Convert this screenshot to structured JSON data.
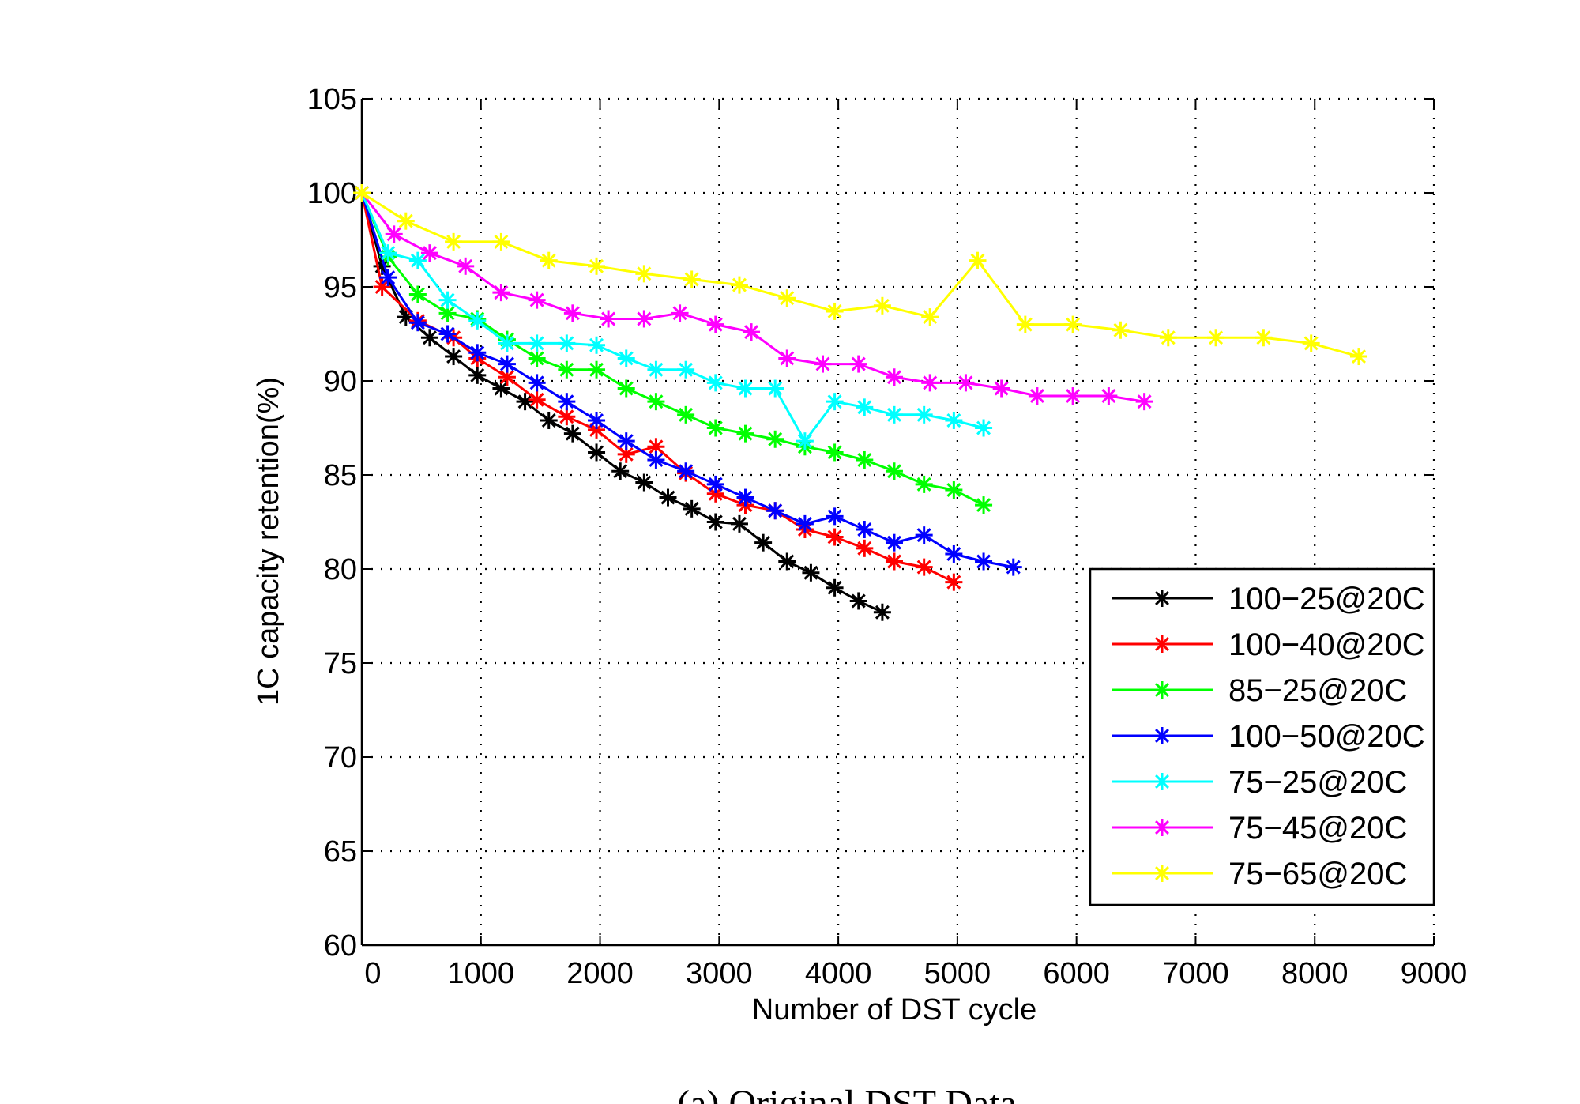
{
  "chart_data": {
    "type": "line",
    "title": "",
    "xlabel": "Number of DST cycle",
    "ylabel": "1C capacity retention(%)",
    "xlim": [
      0,
      9000
    ],
    "ylim": [
      60,
      105
    ],
    "xticks": [
      0,
      1000,
      2000,
      3000,
      4000,
      5000,
      6000,
      7000,
      8000,
      9000
    ],
    "xtick_labels": [
      "0",
      "1000",
      "2000",
      "3000",
      "4000",
      "5000",
      "6000",
      "7000",
      "8000",
      "9000"
    ],
    "yticks": [
      60,
      65,
      70,
      75,
      80,
      85,
      90,
      95,
      100,
      105
    ],
    "ytick_labels": [
      "60",
      "65",
      "70",
      "75",
      "80",
      "85",
      "90",
      "95",
      "100",
      "105"
    ],
    "grid": true,
    "legend_position": "lower-right",
    "marker": "asterisk",
    "series": [
      {
        "name": "100−25@20C",
        "color": "#000000",
        "x": [
          0,
          170,
          370,
          570,
          770,
          970,
          1170,
          1370,
          1570,
          1770,
          1970,
          2170,
          2370,
          2570,
          2770,
          2970,
          3170,
          3370,
          3570,
          3770,
          3970,
          4170,
          4370
        ],
        "y": [
          100,
          96.1,
          93.4,
          92.3,
          91.3,
          90.3,
          89.6,
          88.9,
          87.9,
          87.2,
          86.2,
          85.2,
          84.6,
          83.8,
          83.2,
          82.5,
          82.4,
          81.4,
          80.4,
          79.8,
          79.0,
          78.3,
          77.7
        ]
      },
      {
        "name": "100−40@20C",
        "color": "#ff0000",
        "x": [
          0,
          170,
          470,
          770,
          970,
          1220,
          1470,
          1720,
          1970,
          2220,
          2470,
          2720,
          2970,
          3220,
          3470,
          3720,
          3970,
          4220,
          4470,
          4720,
          4970
        ],
        "y": [
          100,
          95.0,
          93.2,
          92.3,
          91.2,
          90.2,
          89.0,
          88.1,
          87.4,
          86.1,
          86.5,
          85.1,
          84.0,
          83.4,
          83.1,
          82.1,
          81.7,
          81.1,
          80.4,
          80.1,
          79.3
        ]
      },
      {
        "name": "85−25@20C",
        "color": "#00ff00",
        "x": [
          0,
          220,
          470,
          720,
          970,
          1220,
          1470,
          1720,
          1970,
          2220,
          2470,
          2720,
          2970,
          3220,
          3470,
          3720,
          3970,
          4220,
          4470,
          4720,
          4970,
          5220
        ],
        "y": [
          100,
          96.6,
          94.6,
          93.6,
          93.3,
          92.2,
          91.2,
          90.6,
          90.6,
          89.6,
          88.9,
          88.2,
          87.5,
          87.2,
          86.9,
          86.5,
          86.2,
          85.8,
          85.2,
          84.5,
          84.2,
          83.4
        ]
      },
      {
        "name": "100−50@20C",
        "color": "#0000ff",
        "x": [
          0,
          220,
          470,
          720,
          970,
          1220,
          1470,
          1720,
          1970,
          2220,
          2470,
          2720,
          2970,
          3220,
          3470,
          3720,
          3970,
          4220,
          4470,
          4720,
          4970,
          5220,
          5470
        ],
        "y": [
          100,
          95.5,
          93.1,
          92.5,
          91.5,
          90.9,
          89.9,
          88.9,
          87.9,
          86.8,
          85.8,
          85.2,
          84.5,
          83.8,
          83.1,
          82.4,
          82.8,
          82.1,
          81.4,
          81.8,
          80.8,
          80.4,
          80.1
        ]
      },
      {
        "name": "75−25@20C",
        "color": "#00ffff",
        "x": [
          0,
          220,
          470,
          720,
          970,
          1220,
          1470,
          1720,
          1970,
          2220,
          2470,
          2720,
          2970,
          3220,
          3470,
          3720,
          3970,
          4220,
          4470,
          4720,
          4970,
          5220
        ],
        "y": [
          100,
          96.8,
          96.4,
          94.3,
          93.2,
          92.0,
          92.0,
          92.0,
          91.9,
          91.2,
          90.6,
          90.6,
          89.9,
          89.6,
          89.6,
          86.8,
          88.9,
          88.6,
          88.2,
          88.2,
          87.9,
          87.5
        ]
      },
      {
        "name": "75−45@20C",
        "color": "#ff00ff",
        "x": [
          0,
          270,
          570,
          870,
          1170,
          1470,
          1770,
          2070,
          2370,
          2670,
          2970,
          3270,
          3570,
          3870,
          4170,
          4470,
          4770,
          5070,
          5370,
          5670,
          5970,
          6270,
          6570
        ],
        "y": [
          100,
          97.8,
          96.8,
          96.1,
          94.7,
          94.3,
          93.6,
          93.3,
          93.3,
          93.6,
          93.0,
          92.6,
          91.2,
          90.9,
          90.9,
          90.2,
          89.9,
          89.9,
          89.6,
          89.2,
          89.2,
          89.2,
          88.9
        ]
      },
      {
        "name": "75−65@20C",
        "color": "#ffff00",
        "x": [
          0,
          370,
          770,
          1170,
          1570,
          1970,
          2370,
          2770,
          3170,
          3570,
          3970,
          4370,
          4770,
          5170,
          5570,
          5970,
          6370,
          6770,
          7170,
          7570,
          7970,
          8370
        ],
        "y": [
          100,
          98.5,
          97.4,
          97.4,
          96.4,
          96.1,
          95.7,
          95.4,
          95.1,
          94.4,
          93.7,
          94.0,
          93.4,
          96.4,
          93.0,
          93.0,
          92.7,
          92.3,
          92.3,
          92.3,
          92.0,
          91.3
        ]
      }
    ],
    "caption": "(a) Original DST Data"
  }
}
